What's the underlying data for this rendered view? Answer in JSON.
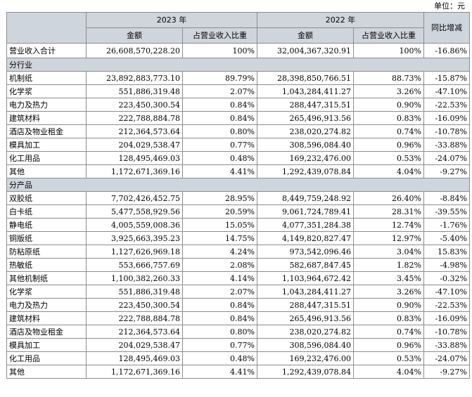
{
  "unit_label": "单位：元",
  "headers": {
    "year_2023": "2023 年",
    "year_2022": "2022 年",
    "yoy": "同比增减",
    "amount": "金额",
    "ratio": "占营业收入比重"
  },
  "total": {
    "label": "营业收入合计",
    "amt2023": "26,608,570,228.20",
    "pct2023": "100%",
    "amt2022": "32,004,367,320.91",
    "pct2022": "100%",
    "yoy": "-16.86%"
  },
  "section_industry": {
    "title": "分行业"
  },
  "industry_rows": [
    {
      "label": "机制纸",
      "amt2023": "23,892,883,773.10",
      "pct2023": "89.79%",
      "amt2022": "28,398,850,766.51",
      "pct2022": "88.73%",
      "yoy": "-15.87%"
    },
    {
      "label": "化学浆",
      "amt2023": "551,886,319.48",
      "pct2023": "2.07%",
      "amt2022": "1,043,284,411.27",
      "pct2022": "3.26%",
      "yoy": "-47.10%"
    },
    {
      "label": "电力及热力",
      "amt2023": "223,450,300.54",
      "pct2023": "0.84%",
      "amt2022": "288,447,315.51",
      "pct2022": "0.90%",
      "yoy": "-22.53%"
    },
    {
      "label": "建筑材料",
      "amt2023": "222,788,884.78",
      "pct2023": "0.84%",
      "amt2022": "265,496,913.56",
      "pct2022": "0.83%",
      "yoy": "-16.09%"
    },
    {
      "label": "酒店及物业租金",
      "amt2023": "212,364,573.64",
      "pct2023": "0.80%",
      "amt2022": "238,020,274.82",
      "pct2022": "0.74%",
      "yoy": "-10.78%"
    },
    {
      "label": "模具加工",
      "amt2023": "204,029,538.47",
      "pct2023": "0.77%",
      "amt2022": "308,596,084.40",
      "pct2022": "0.96%",
      "yoy": "-33.88%"
    },
    {
      "label": "化工用品",
      "amt2023": "128,495,469.03",
      "pct2023": "0.48%",
      "amt2022": "169,232,476.00",
      "pct2022": "0.53%",
      "yoy": "-24.07%"
    },
    {
      "label": "其他",
      "amt2023": "1,172,671,369.16",
      "pct2023": "4.41%",
      "amt2022": "1,292,439,078.84",
      "pct2022": "4.04%",
      "yoy": "-9.27%"
    }
  ],
  "section_product": {
    "title": "分产品"
  },
  "product_rows": [
    {
      "label": "双胶纸",
      "amt2023": "7,702,426,452.75",
      "pct2023": "28.95%",
      "amt2022": "8,449,759,248.92",
      "pct2022": "26.40%",
      "yoy": "-8.84%"
    },
    {
      "label": "白卡纸",
      "amt2023": "5,477,558,929.56",
      "pct2023": "20.59%",
      "amt2022": "9,061,724,789.41",
      "pct2022": "28.31%",
      "yoy": "-39.55%"
    },
    {
      "label": "静电纸",
      "amt2023": "4,005,559,008.36",
      "pct2023": "15.05%",
      "amt2022": "4,077,351,284.38",
      "pct2022": "12.74%",
      "yoy": "-1.76%"
    },
    {
      "label": "铜版纸",
      "amt2023": "3,925,663,395.23",
      "pct2023": "14.75%",
      "amt2022": "4,149,820,827.47",
      "pct2022": "12.97%",
      "yoy": "-5.40%"
    },
    {
      "label": "防粘原纸",
      "amt2023": "1,127,626,969.18",
      "pct2023": "4.24%",
      "amt2022": "973,542,096.46",
      "pct2022": "3.04%",
      "yoy": "15.83%"
    },
    {
      "label": "热敏纸",
      "amt2023": "553,666,757.69",
      "pct2023": "2.08%",
      "amt2022": "582,687,847.45",
      "pct2022": "1.82%",
      "yoy": "-4.98%"
    },
    {
      "label": "其他机制纸",
      "amt2023": "1,100,382,260.33",
      "pct2023": "4.14%",
      "amt2022": "1,103,964,672.42",
      "pct2022": "3.45%",
      "yoy": "-0.32%"
    },
    {
      "label": "化学浆",
      "amt2023": "551,886,319.48",
      "pct2023": "2.07%",
      "amt2022": "1,043,284,411.27",
      "pct2022": "3.26%",
      "yoy": "-47.10%"
    },
    {
      "label": "电力及热力",
      "amt2023": "223,450,300.54",
      "pct2023": "0.84%",
      "amt2022": "288,447,315.51",
      "pct2022": "0.90%",
      "yoy": "-22.53%"
    },
    {
      "label": "建筑材料",
      "amt2023": "222,788,884.78",
      "pct2023": "0.84%",
      "amt2022": "265,496,913.56",
      "pct2022": "0.83%",
      "yoy": "-16.09%"
    },
    {
      "label": "酒店及物业租金",
      "amt2023": "212,364,573.64",
      "pct2023": "0.80%",
      "amt2022": "238,020,274.82",
      "pct2022": "0.74%",
      "yoy": "-10.78%"
    },
    {
      "label": "模具加工",
      "amt2023": "204,029,538.47",
      "pct2023": "0.77%",
      "amt2022": "308,596,084.40",
      "pct2022": "0.96%",
      "yoy": "-33.88%"
    },
    {
      "label": "化工用品",
      "amt2023": "128,495,469.03",
      "pct2023": "0.48%",
      "amt2022": "169,232,476.00",
      "pct2022": "0.53%",
      "yoy": "-24.07%"
    },
    {
      "label": "其他",
      "amt2023": "1,172,671,369.16",
      "pct2023": "4.41%",
      "amt2022": "1,292,439,078.84",
      "pct2022": "4.04%",
      "yoy": "-9.27%"
    }
  ]
}
